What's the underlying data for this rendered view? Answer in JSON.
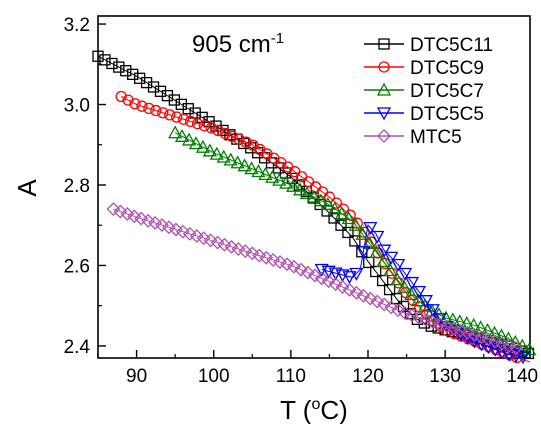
{
  "chart_data": {
    "type": "scatter",
    "annotation": {
      "text": "905 cm",
      "superscript": "-1"
    },
    "xlabel": {
      "prefix": "T (",
      "superscript": "o",
      "suffix": "C)"
    },
    "ylabel": "A",
    "xlim": [
      85,
      141
    ],
    "ylim": [
      2.37,
      3.22
    ],
    "x_ticks": [
      90,
      100,
      110,
      120,
      130,
      140
    ],
    "x_tick_labels": [
      "90",
      "100",
      "110",
      "120",
      "130",
      "140"
    ],
    "y_ticks": [
      2.4,
      2.6,
      2.8,
      3.0,
      3.2
    ],
    "y_tick_labels": [
      "2.4",
      "2.6",
      "2.8",
      "3.0",
      "3.2"
    ],
    "grid": false,
    "legend_position": "top-right",
    "series": [
      {
        "name": "DTC5C11",
        "marker": "square",
        "color": "#000000",
        "x": [
          85,
          90,
          95,
          100,
          105,
          110,
          115,
          118,
          120,
          122,
          124,
          126,
          128,
          130,
          134,
          138,
          141
        ],
        "y": [
          3.12,
          3.07,
          3.01,
          2.95,
          2.89,
          2.82,
          2.73,
          2.67,
          2.61,
          2.56,
          2.51,
          2.47,
          2.45,
          2.44,
          2.42,
          2.4,
          2.38
        ]
      },
      {
        "name": "DTC5C9",
        "marker": "circle",
        "color": "#ff0000",
        "x": [
          88,
          90,
          95,
          100,
          105,
          110,
          115,
          118,
          120,
          122,
          125,
          128,
          130,
          134,
          138,
          141
        ],
        "y": [
          3.02,
          3.0,
          2.97,
          2.94,
          2.9,
          2.84,
          2.77,
          2.72,
          2.67,
          2.61,
          2.53,
          2.47,
          2.44,
          2.41,
          2.38,
          2.36
        ]
      },
      {
        "name": "DTC5C7",
        "marker": "triangle-up",
        "color": "#008000",
        "x": [
          95,
          100,
          105,
          110,
          115,
          118,
          120,
          122,
          124,
          126,
          128,
          130,
          134,
          138,
          141
        ],
        "y": [
          2.93,
          2.88,
          2.84,
          2.8,
          2.75,
          2.71,
          2.66,
          2.61,
          2.56,
          2.52,
          2.49,
          2.47,
          2.45,
          2.42,
          2.39
        ]
      },
      {
        "name": "DTC5C5",
        "marker": "triangle-down",
        "color": "#0000ff",
        "x": [
          114,
          116,
          118,
          119,
          120,
          121,
          122,
          124,
          126,
          128,
          130,
          134,
          138,
          141
        ],
        "y": [
          2.59,
          2.58,
          2.57,
          2.59,
          2.7,
          2.68,
          2.64,
          2.6,
          2.55,
          2.5,
          2.45,
          2.41,
          2.38,
          2.37
        ]
      },
      {
        "name": "MTC5",
        "marker": "diamond",
        "color": "#b050b0",
        "x": [
          87,
          90,
          95,
          100,
          105,
          110,
          115,
          120,
          125,
          130,
          135,
          140
        ],
        "y": [
          2.74,
          2.72,
          2.69,
          2.66,
          2.63,
          2.6,
          2.56,
          2.52,
          2.48,
          2.45,
          2.42,
          2.39
        ]
      }
    ]
  }
}
